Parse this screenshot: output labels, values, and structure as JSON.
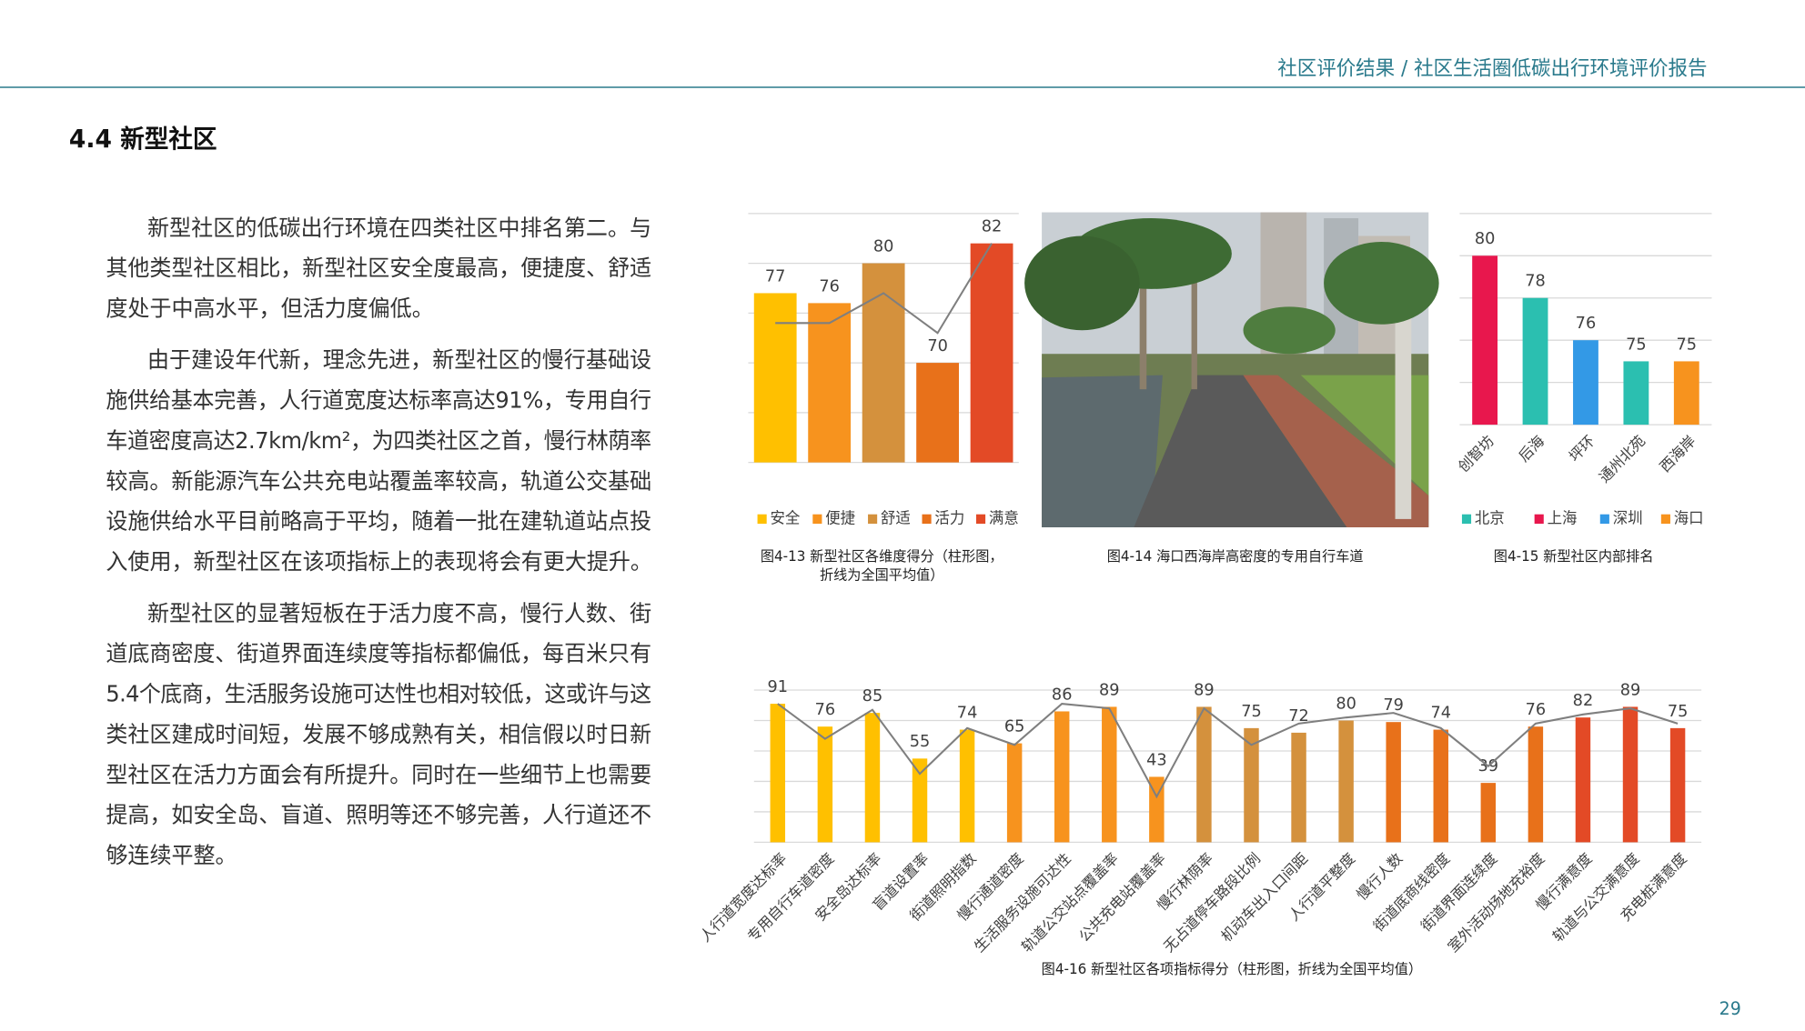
{
  "header": {
    "breadcrumb": "社区评价结果 / 社区生活圈低碳出行环境评价报告"
  },
  "section_title": "4.4 新型社区",
  "paragraphs": [
    [
      "新型社区的低碳出行环境在四类社区中排名第二。与",
      "其他类型社区相比，新型社区安全度最高，便捷度、舒适",
      "度处于中高水平，但活力度偏低。"
    ],
    [
      "由于建设年代新，理念先进，新型社区的慢行基础设",
      "施供给基本完善，人行道宽度达标率高达91%，专用自行",
      "车道密度高达2.7km/km²，为四类社区之首，慢行林荫率",
      "较高。新能源汽车公共充电站覆盖率较高，轨道公交基础",
      "设施供给水平目前略高于平均，随着一批在建轨道站点投",
      "入使用，新型社区在该项指标上的表现将会有更大提升。"
    ],
    [
      "新型社区的显著短板在于活力度不高，慢行人数、街",
      "道底商密度、街道界面连续度等指标都偏低，每百米只有",
      "5.4个底商，生活服务设施可达性也相对较低，这或许与这",
      "类社区建成时间短，发展不够成熟有关，相信假以时日新",
      "型社区在活力方面会有所提升。同时在一些细节上也需要",
      "提高，如安全岛、盲道、照明等还不够完善，人行道还不",
      "够连续平整。"
    ]
  ],
  "photo_caption": "图4-14 海口西海岸高密度的专用自行车道",
  "page_number": "29",
  "chart_data": [
    {
      "type": "bar",
      "caption": [
        "图4-13 新型社区各维度得分（柱形图，",
        "折线为全国平均值）"
      ],
      "categories": [
        "安全",
        "便捷",
        "舒适",
        "活力",
        "满意"
      ],
      "values": [
        77,
        76,
        80,
        70,
        82
      ],
      "colors": [
        "#ffc000",
        "#f7931e",
        "#d4913d",
        "#e8711a",
        "#e34a26"
      ],
      "average": [
        74,
        74,
        77,
        73,
        82
      ],
      "average_color": "#7f7f7f",
      "ylim": [
        60,
        85
      ],
      "yticks": [
        60,
        65,
        70,
        75,
        80,
        85
      ],
      "grid": true,
      "legend": "bottom"
    },
    {
      "type": "bar",
      "caption": [
        "图4-15 新型社区内部排名"
      ],
      "categories": [
        "创智坊",
        "后海",
        "坪环",
        "通州北苑",
        "西海岸"
      ],
      "values": [
        80,
        78,
        76,
        75,
        75
      ],
      "groups": [
        {
          "name": "北京",
          "color": "#2bbfb0"
        },
        {
          "name": "上海",
          "color": "#e8174d"
        },
        {
          "name": "深圳",
          "color": "#3399e6"
        },
        {
          "name": "海口",
          "color": "#f7931e"
        }
      ],
      "bar_groups": [
        1,
        0,
        2,
        0,
        3
      ],
      "ylim": [
        72,
        82
      ],
      "yticks": [
        72,
        74,
        76,
        78,
        80,
        82
      ],
      "grid": true,
      "legend": "bottom"
    },
    {
      "type": "bar",
      "caption": [
        "图4-16 新型社区各项指标得分（柱形图，折线为全国平均值）"
      ],
      "categories": [
        "人行道宽度达标率",
        "专用自行车道密度",
        "安全岛达标率",
        "盲道设置率",
        "街道照明指数",
        "慢行通道密度",
        "生活服务设施可达性",
        "轨道公交站点覆盖率",
        "公共充电站覆盖率",
        "慢行林荫率",
        "无占道停车路段比例",
        "机动车出入口间距",
        "人行道平整度",
        "慢行人数",
        "街道底商线密度",
        "街道界面连续度",
        "室外活动场地充裕度",
        "慢行满意度",
        "轨道与公交满意度",
        "充电桩满意度"
      ],
      "values": [
        91,
        76,
        85,
        55,
        74,
        65,
        86,
        89,
        43,
        89,
        75,
        72,
        80,
        79,
        74,
        39,
        76,
        82,
        89,
        75
      ],
      "colors": [
        "#ffc000",
        "#ffc000",
        "#ffc000",
        "#ffc000",
        "#ffc000",
        "#f7931e",
        "#f7931e",
        "#f7931e",
        "#f7931e",
        "#d4913d",
        "#d4913d",
        "#d4913d",
        "#d4913d",
        "#e8711a",
        "#e8711a",
        "#e8711a",
        "#e8711a",
        "#e34a26",
        "#e34a26",
        "#e34a26"
      ],
      "average": [
        91,
        68,
        87,
        45,
        75,
        64,
        91,
        88,
        30,
        88,
        64,
        78,
        82,
        85,
        75,
        50,
        78,
        84,
        88,
        78
      ],
      "average_color": "#7f7f7f",
      "ylim": [
        0,
        100
      ],
      "yticks": [
        0,
        20,
        40,
        60,
        80,
        100
      ],
      "grid": true
    }
  ]
}
